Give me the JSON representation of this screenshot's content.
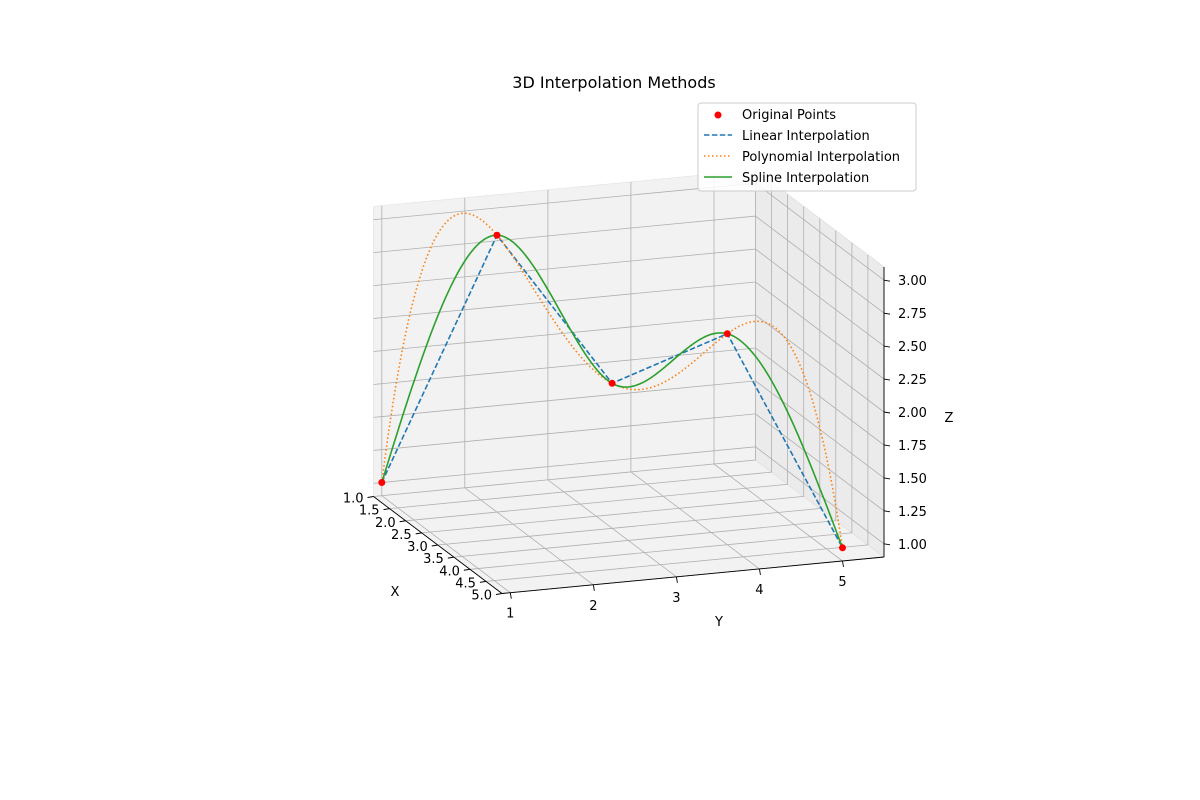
{
  "chart_data": {
    "type": "line",
    "title": "3D Interpolation Methods",
    "xlabel": "X",
    "ylabel": "Y",
    "zlabel": "Z",
    "xlim": [
      1.0,
      5.0
    ],
    "ylim": [
      0.9,
      5.5
    ],
    "zlim": [
      0.9,
      3.1
    ],
    "x_ticks": [
      "1.0",
      "1.5",
      "2.0",
      "2.5",
      "3.0",
      "3.5",
      "4.0",
      "4.5",
      "5.0"
    ],
    "y_ticks": [
      "1",
      "2",
      "3",
      "4",
      "5"
    ],
    "z_ticks": [
      "1.00",
      "1.25",
      "1.50",
      "1.75",
      "2.00",
      "2.25",
      "2.50",
      "2.75",
      "3.00"
    ],
    "grid": true,
    "legend_position": "top-right",
    "points": {
      "name": "Original Points",
      "color": "#ff0000",
      "x": [
        1,
        2,
        3,
        4,
        5
      ],
      "y": [
        1,
        2,
        3,
        4,
        5
      ],
      "z": [
        1.0,
        3.0,
        2.0,
        2.5,
        1.0
      ]
    },
    "series": [
      {
        "name": "Linear Interpolation",
        "color": "#1f77b4",
        "dash": "dashed",
        "method": "linear"
      },
      {
        "name": "Polynomial Interpolation",
        "color": "#ff7f0e",
        "dash": "dotted",
        "method": "polynomial"
      },
      {
        "name": "Spline Interpolation",
        "color": "#2ca02c",
        "dash": "solid",
        "method": "spline"
      }
    ]
  }
}
